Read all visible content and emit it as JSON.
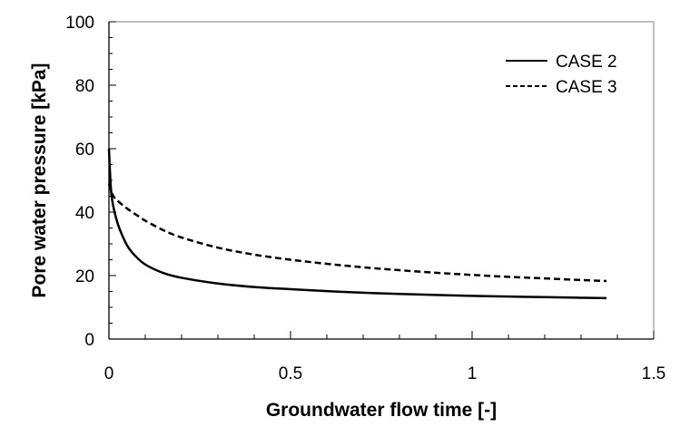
{
  "chart_data": {
    "type": "line",
    "xlabel": "Groundwater flow time  [-]",
    "ylabel": "Pore water pressure [kPa]",
    "xlim": [
      0,
      1.5
    ],
    "ylim": [
      0,
      100
    ],
    "x_major_ticks": [
      "0",
      "0.5",
      "1",
      "1.5"
    ],
    "x_major_values": [
      0,
      0.5,
      1,
      1.5
    ],
    "x_minor_step": 0.1,
    "y_major_ticks": [
      "0",
      "20",
      "40",
      "60",
      "80",
      "100"
    ],
    "y_major_values": [
      0,
      20,
      40,
      60,
      80,
      100
    ],
    "y_minor_step": 5,
    "grid": false,
    "legend_position": "top-right",
    "series": [
      {
        "name": "CASE 2",
        "style": "solid",
        "color": "#000000",
        "x": [
          0.0,
          0.005,
          0.01,
          0.02,
          0.03,
          0.05,
          0.07,
          0.1,
          0.15,
          0.2,
          0.3,
          0.4,
          0.5,
          0.6,
          0.7,
          0.8,
          0.9,
          1.0,
          1.1,
          1.2,
          1.3,
          1.37
        ],
        "y": [
          60,
          48,
          43,
          38,
          34.5,
          29.5,
          26.5,
          23.5,
          20.8,
          19.3,
          17.5,
          16.4,
          15.7,
          15.1,
          14.6,
          14.2,
          13.9,
          13.6,
          13.4,
          13.2,
          13.0,
          12.9
        ]
      },
      {
        "name": "CASE 3",
        "style": "dashed",
        "color": "#000000",
        "x": [
          0.0,
          0.01,
          0.02,
          0.04,
          0.06,
          0.08,
          0.1,
          0.15,
          0.2,
          0.3,
          0.4,
          0.5,
          0.6,
          0.7,
          0.8,
          0.9,
          1.0,
          1.1,
          1.2,
          1.3,
          1.37
        ],
        "y": [
          49,
          45.5,
          44,
          42,
          40.3,
          38.8,
          37.3,
          34.3,
          32,
          28.8,
          26.6,
          25,
          23.7,
          22.6,
          21.7,
          20.9,
          20.2,
          19.6,
          19.1,
          18.6,
          18.3
        ]
      }
    ]
  }
}
